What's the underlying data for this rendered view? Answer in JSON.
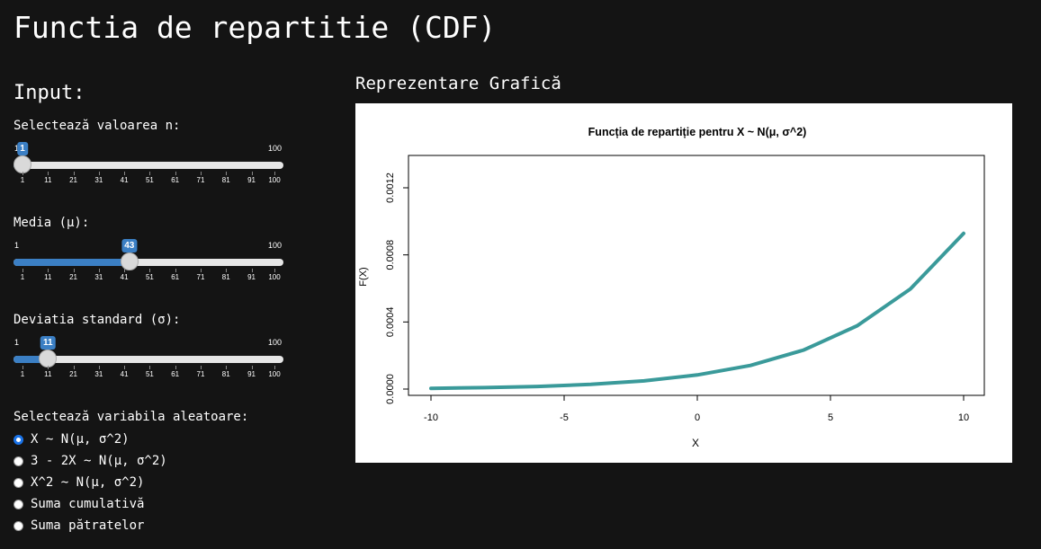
{
  "page": {
    "title": "Functia de repartitie (CDF)"
  },
  "sidebar": {
    "heading": "Input:",
    "slider_n": {
      "label": "Selectează valoarea n:",
      "min": 1,
      "max": 100,
      "value": 1,
      "min_label": "1",
      "max_label": "100",
      "value_label": "1",
      "ticks": [
        "1",
        "11",
        "21",
        "31",
        "41",
        "51",
        "61",
        "71",
        "81",
        "91",
        "100"
      ]
    },
    "slider_mu": {
      "label": "Media (μ):",
      "min": 1,
      "max": 100,
      "value": 43,
      "min_label": "1",
      "max_label": "100",
      "value_label": "43",
      "ticks": [
        "1",
        "11",
        "21",
        "31",
        "41",
        "51",
        "61",
        "71",
        "81",
        "91",
        "100"
      ]
    },
    "slider_sigma": {
      "label": "Deviatia standard (σ):",
      "min": 1,
      "max": 100,
      "value": 11,
      "min_label": "1",
      "max_label": "100",
      "value_label": "11",
      "ticks": [
        "1",
        "11",
        "21",
        "31",
        "41",
        "51",
        "61",
        "71",
        "81",
        "91",
        "100"
      ]
    },
    "variable": {
      "label": "Selectează variabila aleatoare:",
      "options": [
        "X ~ N(μ, σ^2)",
        "3 - 2X ~ N(μ, σ^2)",
        "X^2 ~ N(μ, σ^2)",
        "Suma cumulativă",
        "Suma pătratelor"
      ],
      "selected_index": 0
    }
  },
  "main": {
    "heading": "Reprezentare Grafică"
  },
  "colors": {
    "accent": "#3b7fc4",
    "curve": "#3a9a9a",
    "background": "#141414"
  },
  "chart_data": {
    "type": "line",
    "title": "Funcția de repartiție pentru X ~ N(μ, σ^2)",
    "xlabel": "X",
    "ylabel": "F(X)",
    "xlim": [
      -10,
      10
    ],
    "ylim": [
      0,
      0.00135
    ],
    "x_ticks": [
      -10,
      -5,
      0,
      5,
      10
    ],
    "x_tick_labels": [
      "-10",
      "-5",
      "0",
      "5",
      "10"
    ],
    "y_ticks": [
      0,
      0.0004,
      0.0008,
      0.0012
    ],
    "y_tick_labels": [
      "0.0000",
      "0.0004",
      "0.0008",
      "0.0012"
    ],
    "grid": false,
    "series": [
      {
        "x": [
          -10,
          -8,
          -6,
          -4,
          -2,
          0,
          2,
          4,
          6,
          8,
          10
        ],
        "y": [
          4.5e-06,
          8.5e-06,
          1.55e-05,
          2.79e-05,
          4.89e-05,
          8.39e-05,
          0.000141,
          0.000233,
          0.000377,
          0.000597,
          0.000928
        ]
      }
    ]
  }
}
